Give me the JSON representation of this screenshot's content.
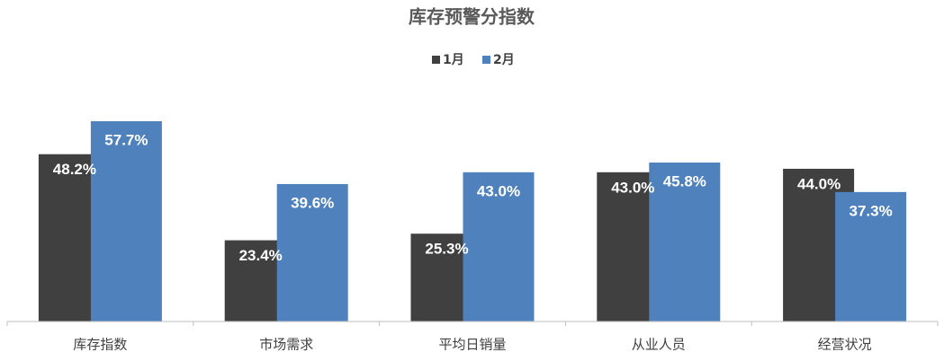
{
  "chart_data": {
    "type": "bar",
    "title": "库存预警分指数",
    "categories": [
      "库存指数",
      "市场需求",
      "平均日销量",
      "从业人员",
      "经营状况"
    ],
    "series": [
      {
        "name": "1月",
        "color": "#404040",
        "values": [
          48.2,
          23.4,
          25.3,
          43.0,
          44.0
        ],
        "value_labels": [
          "48.2%",
          "23.4%",
          "25.3%",
          "43.0%",
          "44.0%"
        ]
      },
      {
        "name": "2月",
        "color": "#4f81bd",
        "values": [
          57.7,
          39.6,
          43.0,
          45.8,
          37.3
        ],
        "value_labels": [
          "57.7%",
          "39.6%",
          "43.0%",
          "45.8%",
          "37.3%"
        ]
      }
    ],
    "legend": "top"
  }
}
